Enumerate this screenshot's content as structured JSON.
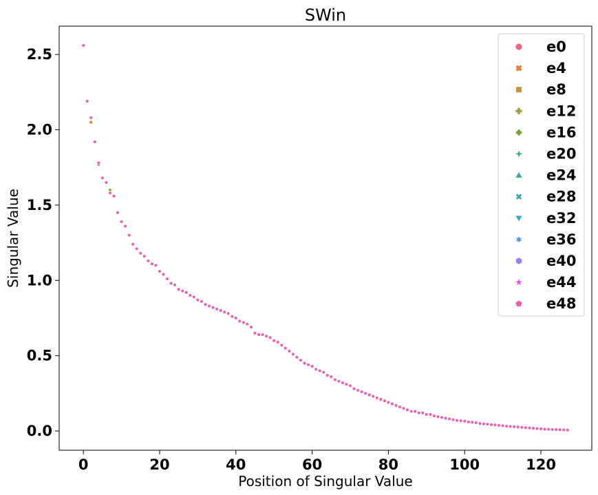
{
  "chart_data": {
    "type": "scatter",
    "title": "SWin",
    "xlabel": "Position of Singular Value",
    "ylabel": "Singular Value",
    "xlim": [
      -6.35,
      133.35
    ],
    "ylim": [
      -0.128,
      2.688
    ],
    "xticks": [
      0,
      20,
      40,
      60,
      80,
      100,
      120
    ],
    "yticks": [
      0.0,
      0.5,
      1.0,
      1.5,
      2.0,
      2.5
    ],
    "ytick_labels": [
      "0.0",
      "0.5",
      "1.0",
      "1.5",
      "2.0",
      "2.5"
    ],
    "legend_position": "top-right",
    "grid": false,
    "series": [
      {
        "name": "e0",
        "marker": "circle",
        "color": "#f0657f"
      },
      {
        "name": "e4",
        "marker": "x",
        "color": "#e47c3c"
      },
      {
        "name": "e8",
        "marker": "square",
        "color": "#c68f3f"
      },
      {
        "name": "e12",
        "marker": "plus",
        "color": "#9e9e3a"
      },
      {
        "name": "e16",
        "marker": "diamond",
        "color": "#6ea33a"
      },
      {
        "name": "e20",
        "marker": "star4",
        "color": "#33ad6b"
      },
      {
        "name": "e24",
        "marker": "triangle-up",
        "color": "#36ab9b"
      },
      {
        "name": "e28",
        "marker": "x-thin",
        "color": "#37a6ad"
      },
      {
        "name": "e32",
        "marker": "triangle-down",
        "color": "#3aa4c8"
      },
      {
        "name": "e36",
        "marker": "star6",
        "color": "#5591ec"
      },
      {
        "name": "e40",
        "marker": "hexagon",
        "color": "#a07ef0"
      },
      {
        "name": "e44",
        "marker": "star5",
        "color": "#e550e9"
      },
      {
        "name": "e48",
        "marker": "pentagon",
        "color": "#ee5cb0"
      }
    ],
    "x": [
      0,
      1,
      2,
      3,
      4,
      5,
      6,
      7,
      8,
      9,
      10,
      11,
      12,
      13,
      14,
      15,
      16,
      17,
      18,
      19,
      20,
      21,
      22,
      23,
      24,
      25,
      26,
      27,
      28,
      29,
      30,
      31,
      32,
      33,
      34,
      35,
      36,
      37,
      38,
      39,
      40,
      41,
      42,
      43,
      44,
      45,
      46,
      47,
      48,
      49,
      50,
      51,
      52,
      53,
      54,
      55,
      56,
      57,
      58,
      59,
      60,
      61,
      62,
      63,
      64,
      65,
      66,
      67,
      68,
      69,
      70,
      71,
      72,
      73,
      74,
      75,
      76,
      77,
      78,
      79,
      80,
      81,
      82,
      83,
      84,
      85,
      86,
      87,
      88,
      89,
      90,
      91,
      92,
      93,
      94,
      95,
      96,
      97,
      98,
      99,
      100,
      101,
      102,
      103,
      104,
      105,
      106,
      107,
      108,
      109,
      110,
      111,
      112,
      113,
      114,
      115,
      116,
      117,
      118,
      119,
      120,
      121,
      122,
      123,
      124,
      125,
      126,
      127
    ],
    "y": [
      2.56,
      2.19,
      2.08,
      1.92,
      1.78,
      1.68,
      1.65,
      1.58,
      1.56,
      1.45,
      1.39,
      1.36,
      1.3,
      1.24,
      1.21,
      1.18,
      1.16,
      1.13,
      1.11,
      1.1,
      1.06,
      1.04,
      1.01,
      0.98,
      0.97,
      0.94,
      0.93,
      0.92,
      0.9,
      0.89,
      0.87,
      0.86,
      0.84,
      0.83,
      0.82,
      0.81,
      0.8,
      0.79,
      0.78,
      0.76,
      0.75,
      0.73,
      0.72,
      0.71,
      0.69,
      0.65,
      0.64,
      0.64,
      0.63,
      0.62,
      0.6,
      0.59,
      0.57,
      0.55,
      0.53,
      0.51,
      0.49,
      0.47,
      0.45,
      0.44,
      0.43,
      0.41,
      0.4,
      0.39,
      0.37,
      0.36,
      0.34,
      0.33,
      0.32,
      0.31,
      0.3,
      0.28,
      0.27,
      0.26,
      0.25,
      0.24,
      0.23,
      0.22,
      0.21,
      0.2,
      0.19,
      0.18,
      0.17,
      0.16,
      0.15,
      0.14,
      0.13,
      0.13,
      0.12,
      0.12,
      0.11,
      0.11,
      0.1,
      0.095,
      0.09,
      0.085,
      0.08,
      0.075,
      0.07,
      0.068,
      0.065,
      0.06,
      0.058,
      0.055,
      0.05,
      0.047,
      0.045,
      0.042,
      0.04,
      0.037,
      0.035,
      0.032,
      0.03,
      0.028,
      0.026,
      0.024,
      0.022,
      0.02,
      0.018,
      0.016,
      0.014,
      0.012,
      0.011,
      0.01,
      0.009,
      0.008,
      0.007,
      0.006
    ],
    "offsets": [
      {
        "x": 2,
        "series": [
          0,
          2
        ],
        "y": [
          2.05,
          2.05
        ]
      },
      {
        "x": 4,
        "series": [
          0,
          2
        ],
        "y": [
          1.77,
          1.77
        ]
      },
      {
        "x": 7,
        "series": [
          0,
          2,
          4
        ],
        "y": [
          1.6,
          1.6,
          1.6
        ]
      }
    ]
  }
}
